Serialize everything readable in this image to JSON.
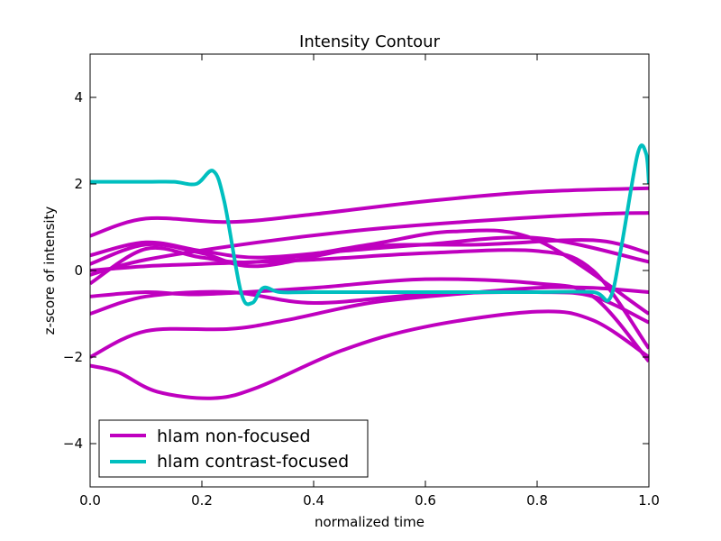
{
  "chart_data": {
    "type": "line",
    "title": "Intensity Contour",
    "xlabel": "normalized time",
    "ylabel": "z-score of intensity",
    "xlim": [
      0.0,
      1.0
    ],
    "ylim": [
      -5,
      5
    ],
    "xticks": [
      0.0,
      0.2,
      0.4,
      0.6,
      0.8,
      1.0
    ],
    "xtick_labels": [
      "0.0",
      "0.2",
      "0.4",
      "0.6",
      "0.8",
      "1.0"
    ],
    "yticks": [
      -4,
      -2,
      0,
      2,
      4
    ],
    "ytick_labels": [
      "−4",
      "−2",
      "0",
      "2",
      "4"
    ],
    "grid": false,
    "legend": {
      "position": "bottom-left",
      "entries": [
        {
          "label": "hlam non-focused",
          "color": "#bf00bf"
        },
        {
          "label": "hlam contrast-focused",
          "color": "#00bfbf"
        }
      ]
    },
    "series": [
      {
        "group": "hlam non-focused",
        "color": "#bf00bf",
        "x": [
          0.0,
          0.1,
          0.25,
          0.4,
          0.6,
          0.8,
          1.0
        ],
        "y": [
          0.8,
          1.2,
          1.12,
          1.3,
          1.6,
          1.82,
          1.9
        ]
      },
      {
        "group": "hlam non-focused",
        "color": "#bf00bf",
        "x": [
          0.0,
          0.1,
          0.3,
          0.5,
          0.7,
          0.9,
          1.0
        ],
        "y": [
          -0.1,
          0.25,
          0.65,
          0.95,
          1.15,
          1.3,
          1.33
        ]
      },
      {
        "group": "hlam non-focused",
        "color": "#bf00bf",
        "x": [
          0.0,
          0.1,
          0.2,
          0.3,
          0.45,
          0.6,
          0.8,
          1.0
        ],
        "y": [
          0.35,
          0.65,
          0.45,
          0.3,
          0.45,
          0.6,
          0.75,
          0.2
        ]
      },
      {
        "group": "hlam non-focused",
        "color": "#bf00bf",
        "x": [
          0.0,
          0.1,
          0.2,
          0.3,
          0.5,
          0.7,
          0.9,
          1.0
        ],
        "y": [
          0.15,
          0.6,
          0.4,
          0.1,
          0.55,
          0.6,
          0.7,
          0.4
        ]
      },
      {
        "group": "hlam non-focused",
        "color": "#bf00bf",
        "x": [
          0.0,
          0.1,
          0.2,
          0.3,
          0.5,
          0.65,
          0.8,
          1.0
        ],
        "y": [
          -0.3,
          0.5,
          0.3,
          0.2,
          0.6,
          0.9,
          0.7,
          -1.0
        ]
      },
      {
        "group": "hlam non-focused",
        "color": "#bf00bf",
        "x": [
          0.0,
          0.1,
          0.2,
          0.4,
          0.6,
          0.8,
          0.9,
          1.0
        ],
        "y": [
          0.0,
          0.1,
          0.15,
          0.25,
          0.4,
          0.45,
          0.0,
          -1.8
        ]
      },
      {
        "group": "hlam non-focused",
        "color": "#bf00bf",
        "x": [
          0.0,
          0.1,
          0.2,
          0.4,
          0.6,
          0.8,
          0.9,
          1.0
        ],
        "y": [
          -0.6,
          -0.5,
          -0.55,
          -0.4,
          -0.2,
          -0.3,
          -0.6,
          -2.1
        ]
      },
      {
        "group": "hlam non-focused",
        "color": "#bf00bf",
        "x": [
          0.0,
          0.1,
          0.25,
          0.4,
          0.6,
          0.8,
          0.9,
          1.0
        ],
        "y": [
          -1.0,
          -0.6,
          -0.5,
          -0.75,
          -0.55,
          -0.5,
          -0.6,
          -1.2
        ]
      },
      {
        "group": "hlam non-focused",
        "color": "#bf00bf",
        "x": [
          0.0,
          0.1,
          0.25,
          0.35,
          0.5,
          0.65,
          0.8,
          0.9,
          1.0
        ],
        "y": [
          -2.0,
          -1.4,
          -1.35,
          -1.15,
          -0.75,
          -0.55,
          -0.4,
          -0.4,
          -0.5
        ]
      },
      {
        "group": "hlam non-focused",
        "color": "#bf00bf",
        "x": [
          0.0,
          0.05,
          0.12,
          0.22,
          0.3,
          0.45,
          0.6,
          0.8,
          0.9,
          1.0
        ],
        "y": [
          -2.2,
          -2.35,
          -2.8,
          -2.95,
          -2.7,
          -1.85,
          -1.3,
          -0.95,
          -1.15,
          -2.0
        ]
      },
      {
        "group": "hlam contrast-focused",
        "color": "#00bfbf",
        "x": [
          0.0,
          0.1,
          0.15,
          0.19,
          0.22,
          0.24,
          0.27,
          0.29,
          0.31,
          0.34,
          0.4,
          0.6,
          0.8,
          0.9,
          0.93,
          0.95,
          0.98,
          0.995,
          1.0
        ],
        "y": [
          2.05,
          2.05,
          2.05,
          2.0,
          2.3,
          1.6,
          -0.5,
          -0.75,
          -0.4,
          -0.5,
          -0.5,
          -0.5,
          -0.5,
          -0.5,
          -0.65,
          0.5,
          2.7,
          2.7,
          2.0
        ]
      }
    ]
  }
}
